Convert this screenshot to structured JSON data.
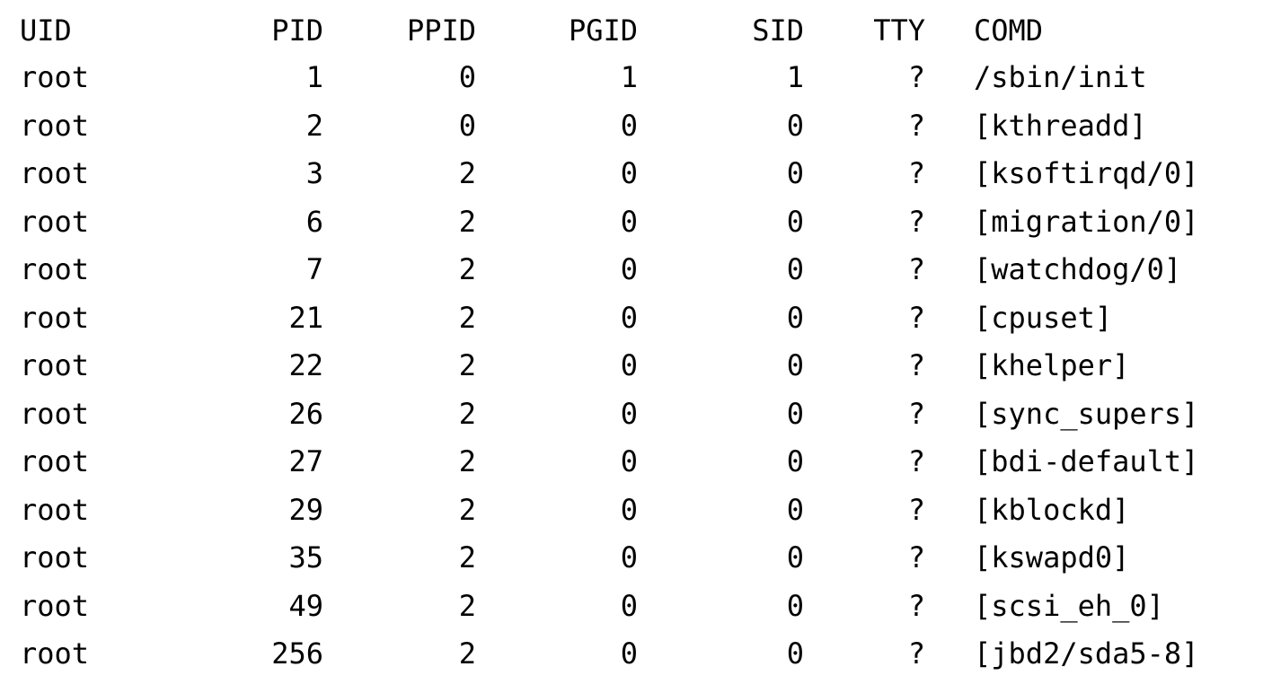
{
  "process_table": {
    "columns": {
      "uid": "UID",
      "pid": "PID",
      "ppid": "PPID",
      "pgid": "PGID",
      "sid": "SID",
      "tty": "TTY",
      "cmd": "COMD"
    },
    "rows": [
      {
        "uid": "root",
        "pid": "1",
        "ppid": "0",
        "pgid": "1",
        "sid": "1",
        "tty": "?",
        "cmd": "/sbin/init"
      },
      {
        "uid": "root",
        "pid": "2",
        "ppid": "0",
        "pgid": "0",
        "sid": "0",
        "tty": "?",
        "cmd": "[kthreadd]"
      },
      {
        "uid": "root",
        "pid": "3",
        "ppid": "2",
        "pgid": "0",
        "sid": "0",
        "tty": "?",
        "cmd": "[ksoftirqd/0]"
      },
      {
        "uid": "root",
        "pid": "6",
        "ppid": "2",
        "pgid": "0",
        "sid": "0",
        "tty": "?",
        "cmd": "[migration/0]"
      },
      {
        "uid": "root",
        "pid": "7",
        "ppid": "2",
        "pgid": "0",
        "sid": "0",
        "tty": "?",
        "cmd": "[watchdog/0]"
      },
      {
        "uid": "root",
        "pid": "21",
        "ppid": "2",
        "pgid": "0",
        "sid": "0",
        "tty": "?",
        "cmd": "[cpuset]"
      },
      {
        "uid": "root",
        "pid": "22",
        "ppid": "2",
        "pgid": "0",
        "sid": "0",
        "tty": "?",
        "cmd": "[khelper]"
      },
      {
        "uid": "root",
        "pid": "26",
        "ppid": "2",
        "pgid": "0",
        "sid": "0",
        "tty": "?",
        "cmd": "[sync_supers]"
      },
      {
        "uid": "root",
        "pid": "27",
        "ppid": "2",
        "pgid": "0",
        "sid": "0",
        "tty": "?",
        "cmd": "[bdi-default]"
      },
      {
        "uid": "root",
        "pid": "29",
        "ppid": "2",
        "pgid": "0",
        "sid": "0",
        "tty": "?",
        "cmd": "[kblockd]"
      },
      {
        "uid": "root",
        "pid": "35",
        "ppid": "2",
        "pgid": "0",
        "sid": "0",
        "tty": "?",
        "cmd": "[kswapd0]"
      },
      {
        "uid": "root",
        "pid": "49",
        "ppid": "2",
        "pgid": "0",
        "sid": "0",
        "tty": "?",
        "cmd": "[scsi_eh_0]"
      },
      {
        "uid": "root",
        "pid": "256",
        "ppid": "2",
        "pgid": "0",
        "sid": "0",
        "tty": "?",
        "cmd": "[jbd2/sda5-8]"
      }
    ]
  }
}
